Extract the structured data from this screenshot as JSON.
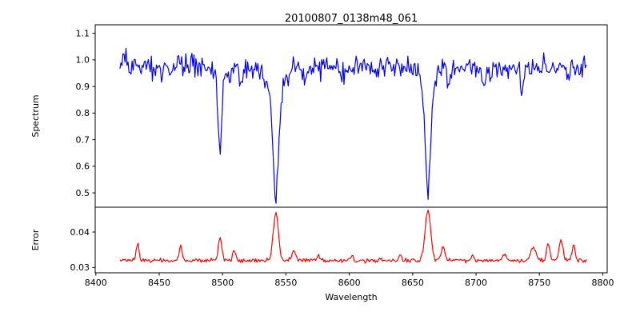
{
  "title": "20100807_0138m48_061",
  "xlabel": "Wavelength",
  "axis_color": "#000000",
  "background_color": "#ffffff",
  "chart_data": {
    "type": "line",
    "title": "20100807_0138m48_061",
    "xlabel": "Wavelength",
    "xlim": [
      8399.5,
      8803.5
    ],
    "x_ticks": [
      8400,
      8450,
      8500,
      8550,
      8600,
      8650,
      8700,
      8750,
      8800
    ],
    "x_data_start": 8419,
    "x_data_end": 8787,
    "x_step": 0.8,
    "grid": false,
    "legend": "none",
    "absorption_line_centers": [
      8498,
      8542,
      8662
    ],
    "error_peak_centers": [
      8433,
      8467,
      8498,
      8542,
      8662,
      8757,
      8767
    ],
    "panels": [
      {
        "name": "spectrum",
        "ylabel": "Spectrum",
        "color": "#0000ff",
        "ylim": [
          0.446,
          1.132
        ],
        "y_ticks": [
          0.5,
          0.6,
          0.7,
          0.8,
          0.9,
          1.0,
          1.1
        ],
        "y_tick_decimals": 1,
        "synthesis": {
          "continuum": 0.972,
          "noise_sigma": 0.021,
          "clamp_sigma": 2.6,
          "seed": 20100807,
          "features": [
            {
              "center": 8423,
              "amplitude": 0.065,
              "sigma": 1.0
            },
            {
              "center": 8452,
              "amplitude": -0.045,
              "sigma": 1.2
            },
            {
              "center": 8498,
              "amplitude": -0.285,
              "sigma": 1.3
            },
            {
              "center": 8498,
              "amplitude": -0.04,
              "sigma": 4.0
            },
            {
              "center": 8515,
              "amplitude": -0.075,
              "sigma": 1.6
            },
            {
              "center": 8542,
              "amplitude": -0.4,
              "sigma": 2.2
            },
            {
              "center": 8542,
              "amplitude": -0.085,
              "sigma": 7.0
            },
            {
              "center": 8565,
              "amplitude": -0.05,
              "sigma": 1.5
            },
            {
              "center": 8595,
              "amplitude": -0.035,
              "sigma": 1.2
            },
            {
              "center": 8621,
              "amplitude": -0.035,
              "sigma": 1.2
            },
            {
              "center": 8662,
              "amplitude": -0.4,
              "sigma": 2.1
            },
            {
              "center": 8662,
              "amplitude": -0.075,
              "sigma": 6.0
            },
            {
              "center": 8679,
              "amplitude": -0.06,
              "sigma": 1.3
            },
            {
              "center": 8706,
              "amplitude": -0.06,
              "sigma": 1.3
            },
            {
              "center": 8736,
              "amplitude": -0.085,
              "sigma": 1.3
            },
            {
              "center": 8773,
              "amplitude": -0.045,
              "sigma": 1.2
            }
          ]
        }
      },
      {
        "name": "error",
        "ylabel": "Error",
        "color": "#ff0000",
        "ylim": [
          0.0285,
          0.047
        ],
        "y_ticks": [
          0.03,
          0.04
        ],
        "y_tick_decimals": 2,
        "synthesis": {
          "continuum": 0.032,
          "noise_sigma": 0.0003,
          "clamp_sigma": 2.6,
          "seed": 138,
          "features": [
            {
              "center": 8433,
              "amplitude": 0.0049,
              "sigma": 1.1
            },
            {
              "center": 8467,
              "amplitude": 0.0037,
              "sigma": 1.1
            },
            {
              "center": 8498,
              "amplitude": 0.006,
              "sigma": 1.4
            },
            {
              "center": 8509,
              "amplitude": 0.0026,
              "sigma": 1.1
            },
            {
              "center": 8542,
              "amplitude": 0.0136,
              "sigma": 2.0
            },
            {
              "center": 8556,
              "amplitude": 0.0028,
              "sigma": 1.4
            },
            {
              "center": 8576,
              "amplitude": 0.0013,
              "sigma": 1.0
            },
            {
              "center": 8602,
              "amplitude": 0.0014,
              "sigma": 1.1
            },
            {
              "center": 8640,
              "amplitude": 0.0012,
              "sigma": 1.3
            },
            {
              "center": 8662,
              "amplitude": 0.014,
              "sigma": 2.2
            },
            {
              "center": 8674,
              "amplitude": 0.0036,
              "sigma": 1.5
            },
            {
              "center": 8697,
              "amplitude": 0.0013,
              "sigma": 1.2
            },
            {
              "center": 8722,
              "amplitude": 0.0018,
              "sigma": 1.5
            },
            {
              "center": 8745,
              "amplitude": 0.0036,
              "sigma": 2.0
            },
            {
              "center": 8757,
              "amplitude": 0.0046,
              "sigma": 1.3
            },
            {
              "center": 8767,
              "amplitude": 0.0058,
              "sigma": 1.5
            },
            {
              "center": 8777,
              "amplitude": 0.0042,
              "sigma": 1.2
            }
          ]
        }
      }
    ]
  }
}
